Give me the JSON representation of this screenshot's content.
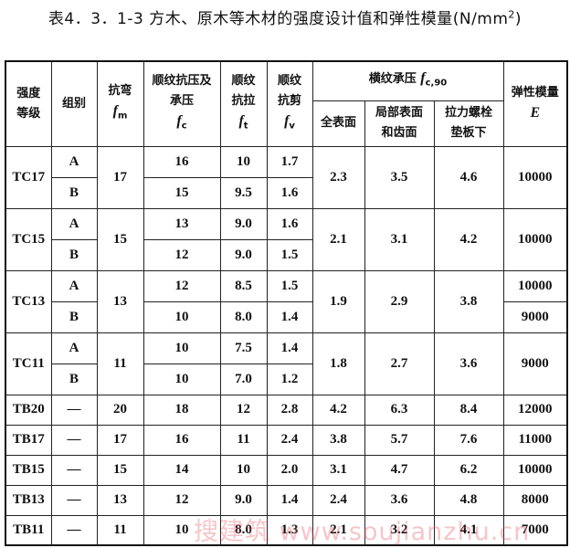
{
  "title": {
    "text": "表4．3．1-3 方木、原木等木材的强度设计值和弹性模量(N/mm",
    "sup": "2",
    "close": ")"
  },
  "headers": {
    "grade": "强度等级",
    "group": "组别",
    "bending": {
      "label": "抗弯",
      "sym": "f",
      "sub": "m"
    },
    "compression": {
      "label": "顺纹抗压及承压",
      "sym": "f",
      "sub": "c"
    },
    "tension": {
      "label": "顺纹抗拉",
      "sym": "f",
      "sub": "t"
    },
    "shear": {
      "label": "顺纹抗剪",
      "sym": "f",
      "sub": "v"
    },
    "cross": {
      "label": "横纹承压 ",
      "sym": "f",
      "sub": "c,90"
    },
    "cross_full": "全表面",
    "cross_local": "局部表面和齿面",
    "cross_bolt": "拉力螺栓垫板下",
    "modulus": {
      "label": "弹性模量",
      "sym": "E"
    }
  },
  "tc_groups": [
    {
      "grade": "TC17",
      "fm": "17",
      "full": "2.3",
      "local": "3.5",
      "bolt": "4.6",
      "E_shared": "10000",
      "rows": [
        {
          "group": "A",
          "fc": "16",
          "ft": "10",
          "fv": "1.7"
        },
        {
          "group": "B",
          "fc": "15",
          "ft": "9.5",
          "fv": "1.6"
        }
      ]
    },
    {
      "grade": "TC15",
      "fm": "15",
      "full": "2.1",
      "local": "3.1",
      "bolt": "4.2",
      "E_shared": "10000",
      "rows": [
        {
          "group": "A",
          "fc": "13",
          "ft": "9.0",
          "fv": "1.6"
        },
        {
          "group": "B",
          "fc": "12",
          "ft": "9.0",
          "fv": "1.5"
        }
      ]
    },
    {
      "grade": "TC13",
      "fm": "13",
      "full": "1.9",
      "local": "2.9",
      "bolt": "3.8",
      "rows": [
        {
          "group": "A",
          "fc": "12",
          "ft": "8.5",
          "fv": "1.5",
          "E": "10000"
        },
        {
          "group": "B",
          "fc": "10",
          "ft": "8.0",
          "fv": "1.4",
          "E": "9000"
        }
      ]
    },
    {
      "grade": "TC11",
      "fm": "11",
      "full": "1.8",
      "local": "2.7",
      "bolt": "3.6",
      "E_shared": "9000",
      "rows": [
        {
          "group": "A",
          "fc": "10",
          "ft": "7.5",
          "fv": "1.4"
        },
        {
          "group": "B",
          "fc": "10",
          "ft": "7.0",
          "fv": "1.2"
        }
      ]
    }
  ],
  "tb_rows": [
    {
      "grade": "TB20",
      "group": "—",
      "fm": "20",
      "fc": "18",
      "ft": "12",
      "fv": "2.8",
      "full": "4.2",
      "local": "6.3",
      "bolt": "8.4",
      "E": "12000"
    },
    {
      "grade": "TB17",
      "group": "—",
      "fm": "17",
      "fc": "16",
      "ft": "11",
      "fv": "2.4",
      "full": "3.8",
      "local": "5.7",
      "bolt": "7.6",
      "E": "11000"
    },
    {
      "grade": "TB15",
      "group": "—",
      "fm": "15",
      "fc": "14",
      "ft": "10",
      "fv": "2.0",
      "full": "3.1",
      "local": "4.7",
      "bolt": "6.2",
      "E": "10000"
    },
    {
      "grade": "TB13",
      "group": "—",
      "fm": "13",
      "fc": "12",
      "ft": "9.0",
      "fv": "1.4",
      "full": "2.4",
      "local": "3.6",
      "bolt": "4.8",
      "E": "8000"
    },
    {
      "grade": "TB11",
      "group": "—",
      "fm": "11",
      "fc": "10",
      "ft": "8.0",
      "fv": "1.3",
      "full": "2.1",
      "local": "3.2",
      "bolt": "4.1",
      "E": "7000"
    }
  ],
  "watermark": "搜建筑 www.soujianzhu.cn"
}
